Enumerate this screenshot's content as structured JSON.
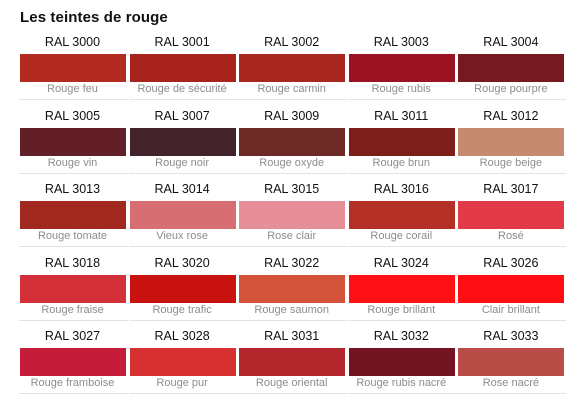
{
  "title": "Les teintes de rouge",
  "swatches": [
    {
      "code": "RAL 3000",
      "name": "Rouge feu",
      "color": "#b22a20"
    },
    {
      "code": "RAL 3001",
      "name": "Rouge de sécurité",
      "color": "#a9231d"
    },
    {
      "code": "RAL 3002",
      "name": "Rouge carmin",
      "color": "#a82620"
    },
    {
      "code": "RAL 3003",
      "name": "Rouge rubis",
      "color": "#9b1322"
    },
    {
      "code": "RAL 3004",
      "name": "Rouge pourpre",
      "color": "#761a22"
    },
    {
      "code": "RAL 3005",
      "name": "Rouge vin",
      "color": "#621f28"
    },
    {
      "code": "RAL 3007",
      "name": "Rouge noir",
      "color": "#43232a"
    },
    {
      "code": "RAL 3009",
      "name": "Rouge oxyde",
      "color": "#6e2a27"
    },
    {
      "code": "RAL 3011",
      "name": "Rouge brun",
      "color": "#7d1e1b"
    },
    {
      "code": "RAL 3012",
      "name": "Rouge beige",
      "color": "#c58a6f"
    },
    {
      "code": "RAL 3013",
      "name": "Rouge tomate",
      "color": "#a0281e"
    },
    {
      "code": "RAL 3014",
      "name": "Vieux rose",
      "color": "#d66e73"
    },
    {
      "code": "RAL 3015",
      "name": "Rose clair",
      "color": "#e68e99"
    },
    {
      "code": "RAL 3016",
      "name": "Rouge corail",
      "color": "#b42f26"
    },
    {
      "code": "RAL 3017",
      "name": "Rosé",
      "color": "#e33a4a"
    },
    {
      "code": "RAL 3018",
      "name": "Rouge fraise",
      "color": "#d3303a"
    },
    {
      "code": "RAL 3020",
      "name": "Rouge trafic",
      "color": "#c8120f"
    },
    {
      "code": "RAL 3022",
      "name": "Rouge saumon",
      "color": "#d3523a"
    },
    {
      "code": "RAL 3024",
      "name": "Rouge brillant",
      "color": "#fe1014"
    },
    {
      "code": "RAL 3026",
      "name": "Clair brillant",
      "color": "#fe0d12"
    },
    {
      "code": "RAL 3027",
      "name": "Rouge framboise",
      "color": "#c51c3a"
    },
    {
      "code": "RAL 3028",
      "name": "Rouge pur",
      "color": "#d73030"
    },
    {
      "code": "RAL 3031",
      "name": "Rouge oriental",
      "color": "#b3262c"
    },
    {
      "code": "RAL 3032",
      "name": "Rouge rubis nacré",
      "color": "#721421"
    },
    {
      "code": "RAL 3033",
      "name": "Rose nacré",
      "color": "#b84c47"
    }
  ]
}
